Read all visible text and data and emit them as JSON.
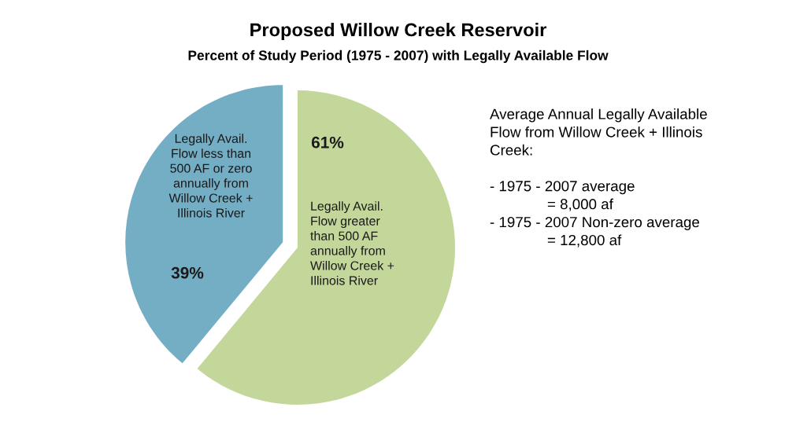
{
  "chart_data": {
    "type": "pie",
    "title": "Proposed Willow Creek Reservoir",
    "subtitle": "Percent of Study Period (1975 - 2007) with Legally Available Flow",
    "categories": [
      "Legally Avail.\nFlow greater\nthan 500 AF\nannually from\nWillow Creek +\nIllinois River",
      "Legally Avail.\nFlow less than\n500 AF or zero\nannually from\nWillow Creek +\nIllinois River"
    ],
    "values": [
      61,
      39
    ],
    "colors": [
      "#c4d79b",
      "#74aec4"
    ],
    "value_labels": [
      "61%",
      "39%"
    ],
    "annotations": [
      "Average Annual Legally Available\nFlow from Willow Creek + Illinois\nCreek:\n\n- 1975 - 2007 average\n              = 8,000 af\n- 1975 - 2007 Non-zero average\n              = 12,800 af"
    ],
    "legend": false
  }
}
